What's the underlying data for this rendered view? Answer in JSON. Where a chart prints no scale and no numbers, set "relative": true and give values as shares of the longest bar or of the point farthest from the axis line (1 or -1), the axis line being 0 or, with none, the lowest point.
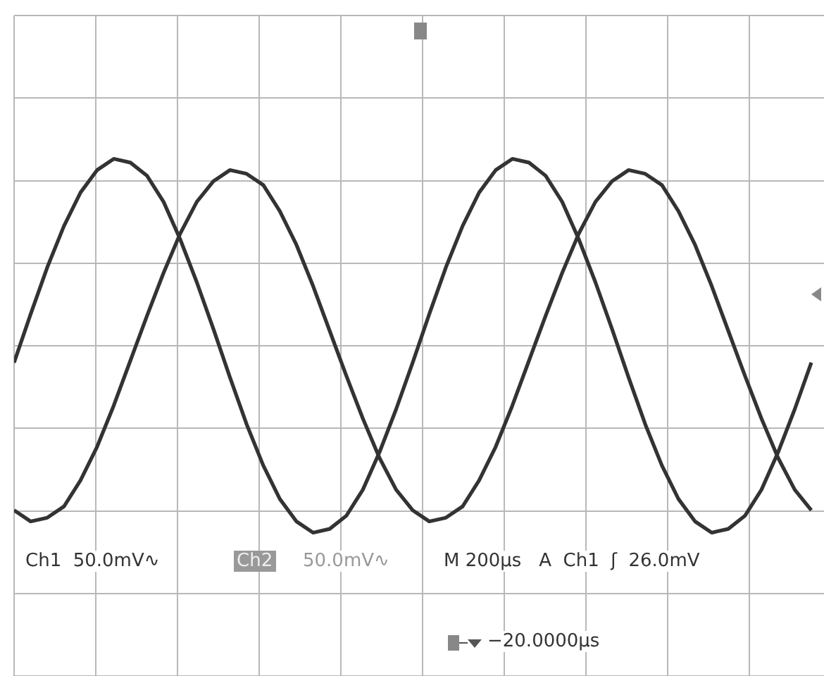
{
  "chart_data": {
    "type": "line",
    "relative": true,
    "grid": true,
    "legend": false,
    "marker": "none",
    "line_style": "solid",
    "categories": [
      null,
      null,
      null,
      null,
      null,
      null,
      null,
      null,
      null,
      null,
      null,
      null,
      null,
      null,
      null,
      null,
      null,
      null,
      null,
      null,
      null,
      null,
      null,
      null,
      null,
      null,
      null,
      null,
      null,
      null,
      null,
      null,
      null,
      null,
      null,
      null,
      null,
      null,
      null,
      null,
      null,
      null,
      null,
      null,
      null,
      null,
      null,
      null,
      null
    ],
    "series": [
      {
        "color": "#333333",
        "values": [
          -0.09,
          0.17,
          0.42,
          0.64,
          0.82,
          0.94,
          1.0,
          0.98,
          0.91,
          0.77,
          0.57,
          0.34,
          0.09,
          -0.17,
          -0.42,
          -0.64,
          -0.82,
          -0.94,
          -1.0,
          -0.98,
          -0.91,
          -0.77,
          -0.57,
          -0.34,
          -0.09,
          0.17,
          0.42,
          0.64,
          0.82,
          0.94,
          1.0,
          0.98,
          0.91,
          0.77,
          0.57,
          0.34,
          0.09,
          -0.17,
          -0.42,
          -0.64,
          -0.82,
          -0.94,
          -1.0,
          -0.98,
          -0.91,
          -0.77,
          -0.57,
          -0.34,
          -0.09
        ]
      },
      {
        "color": "#333333",
        "values": [
          -0.88,
          -0.94,
          -0.92,
          -0.86,
          -0.72,
          -0.54,
          -0.32,
          -0.08,
          0.16,
          0.39,
          0.6,
          0.77,
          0.88,
          0.94,
          0.92,
          0.86,
          0.72,
          0.54,
          0.32,
          0.08,
          -0.16,
          -0.39,
          -0.6,
          -0.77,
          -0.88,
          -0.94,
          -0.92,
          -0.86,
          -0.72,
          -0.54,
          -0.32,
          -0.08,
          0.16,
          0.39,
          0.6,
          0.77,
          0.88,
          0.94,
          0.92,
          0.86,
          0.72,
          0.54,
          0.32,
          0.08,
          -0.16,
          -0.39,
          -0.6,
          -0.77,
          -0.88
        ]
      }
    ],
    "annotations": [
      "Ch1  50.0mV∿",
      "Ch2",
      "50.0mV∿",
      "M 200µs   A  Ch1  ʃ  26.0mV",
      "−20.0000µs"
    ]
  }
}
